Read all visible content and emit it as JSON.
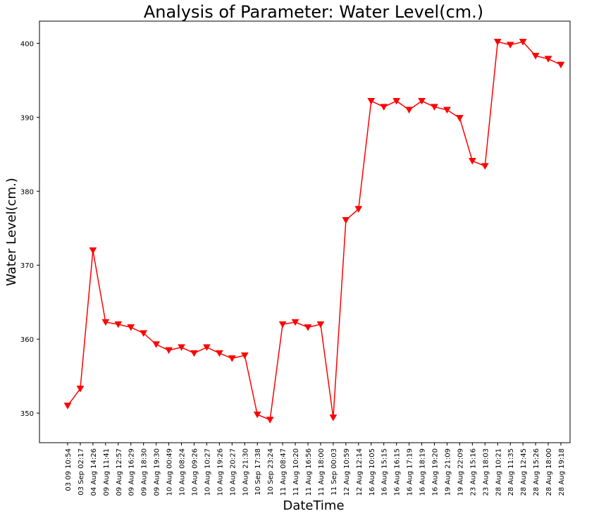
{
  "chart_data": {
    "type": "line",
    "title": "Analysis of Parameter: Water Level(cm.)",
    "xlabel": "DateTime",
    "ylabel": "Water Level(cm.)",
    "ylim": [
      346,
      403
    ],
    "yticks": [
      350,
      360,
      370,
      380,
      390,
      400
    ],
    "grid": false,
    "marker": "triangle-down",
    "line_color": "#ff0000",
    "marker_color": "#ff0000",
    "categories": [
      "03 09 10:54",
      "03 Sep 02:17",
      "04 Aug 14:26",
      "09 Aug 11:41",
      "09 Aug 12:57",
      "09 Aug 16:29",
      "09 Aug 18:30",
      "09 Aug 19:30",
      "10 Aug 00:49",
      "10 Aug 08:24",
      "10 Aug 09:26",
      "10 Aug 10:27",
      "10 Aug 19:26",
      "10 Aug 20:27",
      "10 Aug 21:30",
      "10 Sep 17:38",
      "10 Sep 23:24",
      "11 Aug 08:47",
      "11 Aug 10:20",
      "11 Aug 16:56",
      "11 Aug 18:00",
      "11 Sep 00:03",
      "12 Aug 10:59",
      "12 Aug 12:14",
      "16 Aug 10:05",
      "16 Aug 15:15",
      "16 Aug 16:15",
      "16 Aug 17:19",
      "16 Aug 18:19",
      "16 Aug 19:20",
      "19 Aug 21:09",
      "19 Aug 22:09",
      "23 Aug 15:16",
      "23 Aug 18:03",
      "28 Aug 10:21",
      "28 Aug 11:35",
      "28 Aug 12:45",
      "28 Aug 15:26",
      "28 Aug 18:00",
      "28 Aug 19:18"
    ],
    "series": [
      {
        "values": [
          351.0,
          353.3,
          372.0,
          362.3,
          362.0,
          361.6,
          360.8,
          359.3,
          358.5,
          358.9,
          358.1,
          358.9,
          358.1,
          357.4,
          357.8,
          349.8,
          349.1,
          362.0,
          362.3,
          361.6,
          362.0,
          349.4,
          376.1,
          377.6,
          392.2,
          391.4,
          392.2,
          391.0,
          392.2,
          391.4,
          391.0,
          389.9,
          384.1,
          383.4,
          400.2,
          399.8,
          400.2,
          398.3,
          397.9,
          397.1
        ]
      }
    ]
  }
}
